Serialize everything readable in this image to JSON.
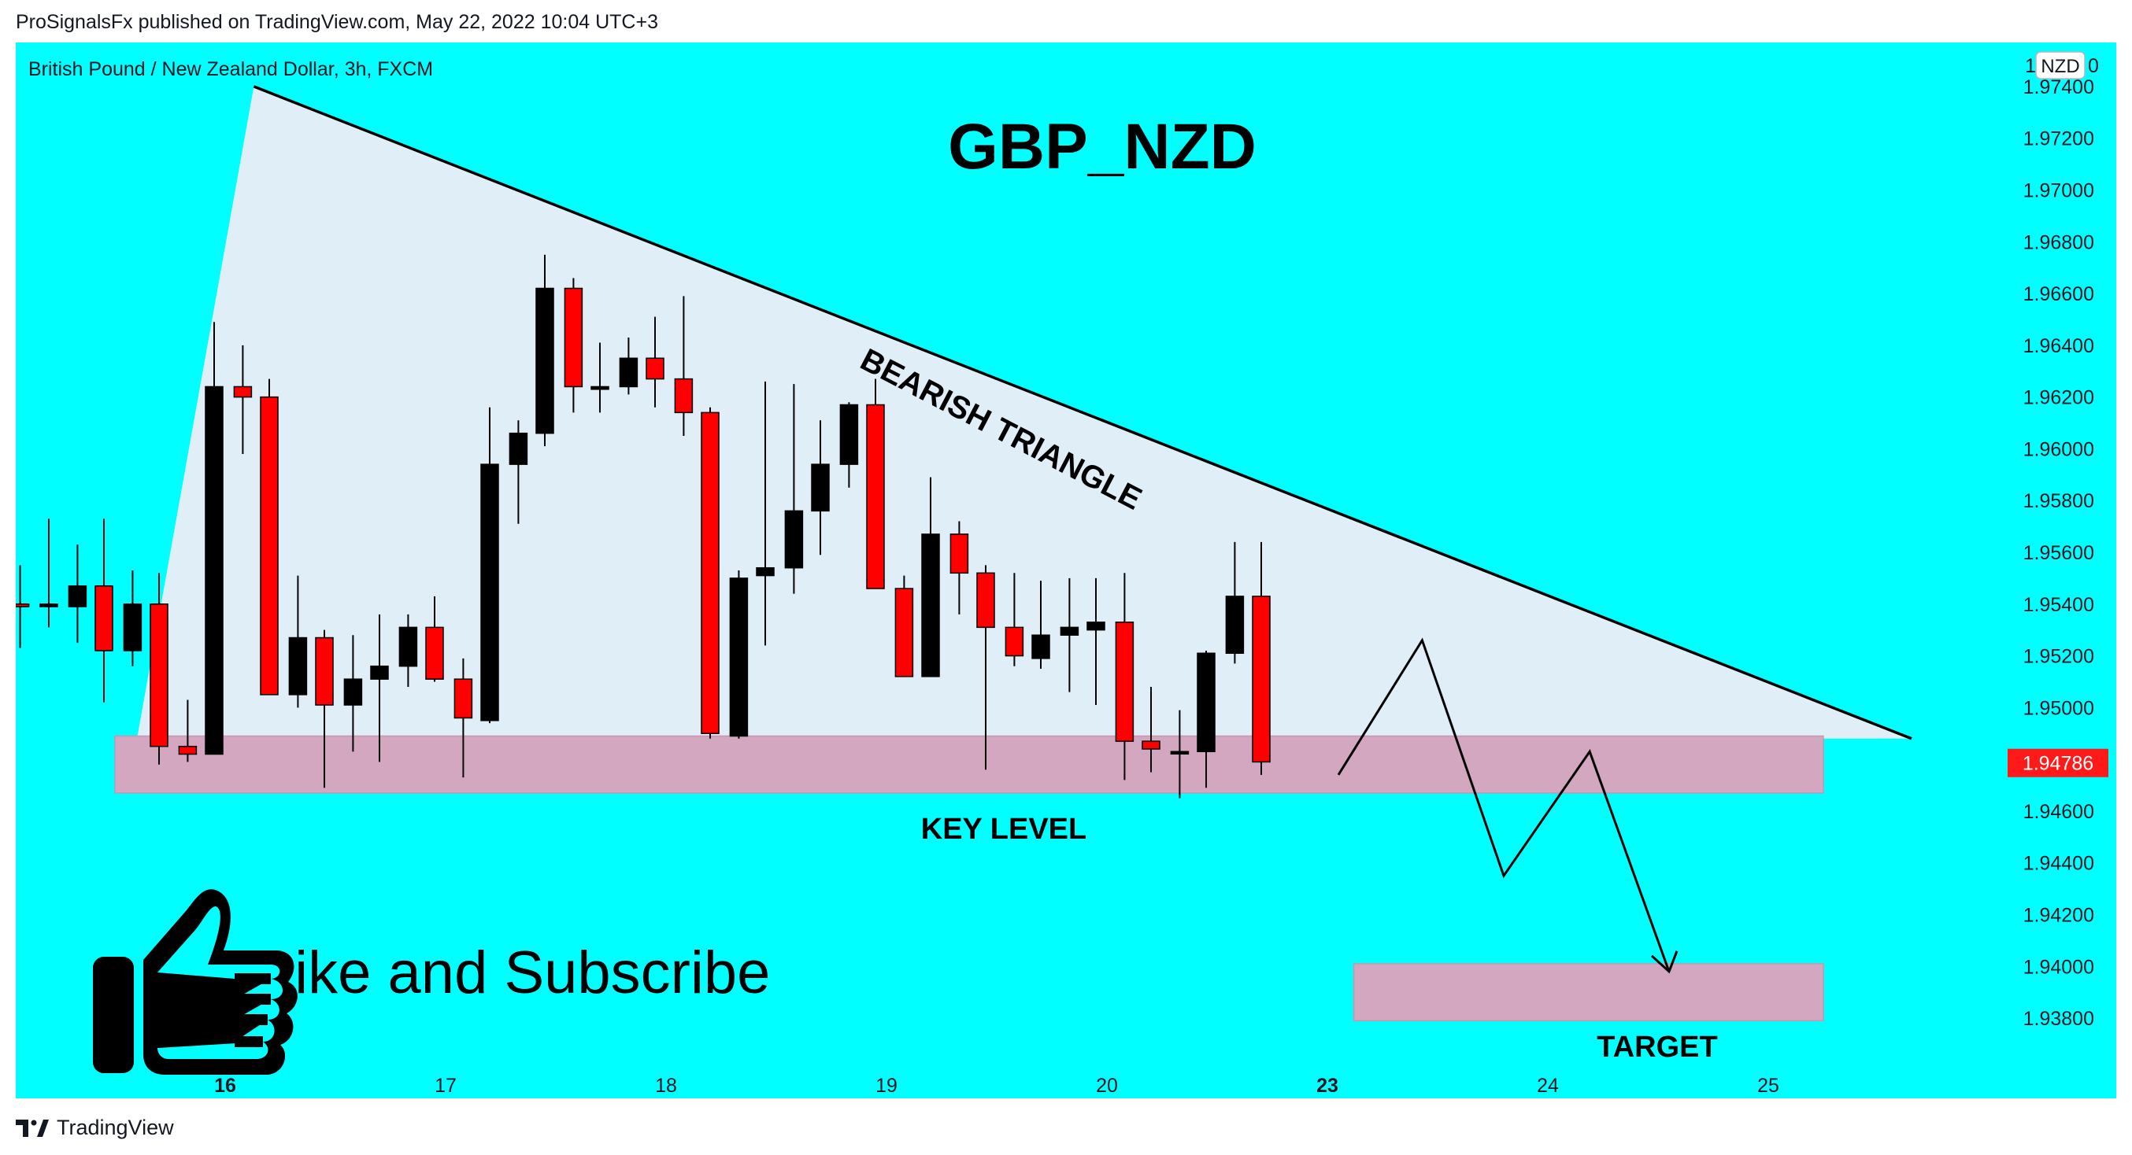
{
  "header": {
    "publisher_line": "ProSignalsFx published on TradingView.com, May 22, 2022 10:04 UTC+3"
  },
  "footer": {
    "brand": "TradingView",
    "logo_icon": "tradingview-logo-icon"
  },
  "colors": {
    "background": "#00ffff",
    "bull_candle": "#000000",
    "bear_candle": "#ff0000",
    "triangle_fill": "#e0eef8",
    "zone_fill": "#d4a7c0",
    "price_tag": "#ff1a1a"
  },
  "chart_data": {
    "type": "candlestick",
    "symbol_line": "British Pound / New Zealand Dollar, 3h, FXCM",
    "currency_badge": "NZD",
    "axis_top_fragment": "1",
    "axis_top_fragment_right": "0",
    "title": "GBP_NZD",
    "annotations": {
      "pattern": "BEARISH TRIANGLE",
      "key_level": "KEY LEVEL",
      "target": "TARGET",
      "cta": "Like and Subscribe",
      "cta_icon": "thumbs-up-icon"
    },
    "last_price": "1.94786",
    "y_ticks": [
      "1.97400",
      "1.97200",
      "1.97000",
      "1.96800",
      "1.96600",
      "1.96400",
      "1.96200",
      "1.96000",
      "1.95800",
      "1.95600",
      "1.95400",
      "1.95200",
      "1.95000",
      "1.94600",
      "1.94400",
      "1.94200",
      "1.94000",
      "1.93800"
    ],
    "x_labels": [
      {
        "label": "16",
        "bold": true,
        "x": 15.95
      },
      {
        "label": "17",
        "bold": false,
        "x": 16.95
      },
      {
        "label": "18",
        "bold": false,
        "x": 17.95
      },
      {
        "label": "19",
        "bold": false,
        "x": 18.95
      },
      {
        "label": "20",
        "bold": false,
        "x": 19.95
      },
      {
        "label": "23",
        "bold": true,
        "x": 20.95
      },
      {
        "label": "24",
        "bold": false,
        "x": 21.95
      },
      {
        "label": "25",
        "bold": false,
        "x": 22.95
      }
    ],
    "candles": [
      {
        "x": 15.02,
        "o": 1.954,
        "h": 1.9555,
        "l": 1.9523,
        "c": 1.9539
      },
      {
        "x": 15.15,
        "o": 1.9539,
        "h": 1.9573,
        "l": 1.9531,
        "c": 1.954
      },
      {
        "x": 15.28,
        "o": 1.9539,
        "h": 1.9563,
        "l": 1.9525,
        "c": 1.9547
      },
      {
        "x": 15.4,
        "o": 1.9547,
        "h": 1.9573,
        "l": 1.9502,
        "c": 1.9522
      },
      {
        "x": 15.53,
        "o": 1.9522,
        "h": 1.9553,
        "l": 1.9516,
        "c": 1.954
      },
      {
        "x": 15.65,
        "o": 1.954,
        "h": 1.9552,
        "l": 1.9478,
        "c": 1.9485
      },
      {
        "x": 15.78,
        "o": 1.9485,
        "h": 1.9503,
        "l": 1.9479,
        "c": 1.9482
      },
      {
        "x": 15.9,
        "o": 1.9482,
        "h": 1.9649,
        "l": 1.9482,
        "c": 1.9624
      },
      {
        "x": 16.03,
        "o": 1.9624,
        "h": 1.964,
        "l": 1.9598,
        "c": 1.962
      },
      {
        "x": 16.15,
        "o": 1.962,
        "h": 1.9627,
        "l": 1.9505,
        "c": 1.9505
      },
      {
        "x": 16.28,
        "o": 1.9505,
        "h": 1.9551,
        "l": 1.95,
        "c": 1.9527
      },
      {
        "x": 16.4,
        "o": 1.9527,
        "h": 1.953,
        "l": 1.9469,
        "c": 1.9501
      },
      {
        "x": 16.53,
        "o": 1.9501,
        "h": 1.9528,
        "l": 1.9483,
        "c": 1.9511
      },
      {
        "x": 16.65,
        "o": 1.9511,
        "h": 1.9536,
        "l": 1.9479,
        "c": 1.9516
      },
      {
        "x": 16.78,
        "o": 1.9516,
        "h": 1.9536,
        "l": 1.9508,
        "c": 1.9531
      },
      {
        "x": 16.9,
        "o": 1.9531,
        "h": 1.9543,
        "l": 1.951,
        "c": 1.9511
      },
      {
        "x": 17.03,
        "o": 1.9511,
        "h": 1.9519,
        "l": 1.9473,
        "c": 1.9496
      },
      {
        "x": 17.15,
        "o": 1.9495,
        "h": 1.9616,
        "l": 1.9494,
        "c": 1.9594
      },
      {
        "x": 17.28,
        "o": 1.9594,
        "h": 1.9611,
        "l": 1.9571,
        "c": 1.9606
      },
      {
        "x": 17.4,
        "o": 1.9606,
        "h": 1.9675,
        "l": 1.9601,
        "c": 1.9662
      },
      {
        "x": 17.53,
        "o": 1.9662,
        "h": 1.9666,
        "l": 1.9614,
        "c": 1.9624
      },
      {
        "x": 17.65,
        "o": 1.9623,
        "h": 1.9641,
        "l": 1.9614,
        "c": 1.9624
      },
      {
        "x": 17.78,
        "o": 1.9624,
        "h": 1.9643,
        "l": 1.9621,
        "c": 1.9635
      },
      {
        "x": 17.9,
        "o": 1.9635,
        "h": 1.9651,
        "l": 1.9616,
        "c": 1.9627
      },
      {
        "x": 18.03,
        "o": 1.9627,
        "h": 1.9659,
        "l": 1.9605,
        "c": 1.9614
      },
      {
        "x": 18.15,
        "o": 1.9614,
        "h": 1.9616,
        "l": 1.9488,
        "c": 1.949
      },
      {
        "x": 18.28,
        "o": 1.9489,
        "h": 1.9553,
        "l": 1.9488,
        "c": 1.955
      },
      {
        "x": 18.4,
        "o": 1.9551,
        "h": 1.9626,
        "l": 1.9524,
        "c": 1.9554
      },
      {
        "x": 18.53,
        "o": 1.9554,
        "h": 1.9625,
        "l": 1.9544,
        "c": 1.9576
      },
      {
        "x": 18.65,
        "o": 1.9576,
        "h": 1.9611,
        "l": 1.9559,
        "c": 1.9594
      },
      {
        "x": 18.78,
        "o": 1.9594,
        "h": 1.9618,
        "l": 1.9585,
        "c": 1.9617
      },
      {
        "x": 18.9,
        "o": 1.9617,
        "h": 1.9627,
        "l": 1.9546,
        "c": 1.9546
      },
      {
        "x": 19.03,
        "o": 1.9546,
        "h": 1.9551,
        "l": 1.9512,
        "c": 1.9512
      },
      {
        "x": 19.15,
        "o": 1.9512,
        "h": 1.9589,
        "l": 1.9512,
        "c": 1.9567
      },
      {
        "x": 19.28,
        "o": 1.9567,
        "h": 1.9572,
        "l": 1.9536,
        "c": 1.9552
      },
      {
        "x": 19.4,
        "o": 1.9552,
        "h": 1.9555,
        "l": 1.9476,
        "c": 1.9531
      },
      {
        "x": 19.53,
        "o": 1.9531,
        "h": 1.9552,
        "l": 1.9516,
        "c": 1.952
      },
      {
        "x": 19.65,
        "o": 1.9519,
        "h": 1.9549,
        "l": 1.9515,
        "c": 1.9528
      },
      {
        "x": 19.78,
        "o": 1.9528,
        "h": 1.955,
        "l": 1.9506,
        "c": 1.9531
      },
      {
        "x": 19.9,
        "o": 1.953,
        "h": 1.955,
        "l": 1.9501,
        "c": 1.9533
      },
      {
        "x": 20.03,
        "o": 1.9533,
        "h": 1.9552,
        "l": 1.9472,
        "c": 1.9487
      },
      {
        "x": 20.15,
        "o": 1.9487,
        "h": 1.9508,
        "l": 1.9475,
        "c": 1.9484
      },
      {
        "x": 20.28,
        "o": 1.9483,
        "h": 1.9499,
        "l": 1.9465,
        "c": 1.9483
      },
      {
        "x": 20.4,
        "o": 1.9483,
        "h": 1.9522,
        "l": 1.9469,
        "c": 1.9521
      },
      {
        "x": 20.53,
        "o": 1.9521,
        "h": 1.9564,
        "l": 1.9517,
        "c": 1.9543
      },
      {
        "x": 20.65,
        "o": 1.9543,
        "h": 1.9564,
        "l": 1.9474,
        "c": 1.9479
      }
    ],
    "triangle": {
      "apex": [
        16.08,
        1.974
      ],
      "upper_end": [
        23.6,
        1.9488
      ],
      "lower_left": [
        15.55,
        1.9488
      ]
    },
    "key_level_zone": {
      "x_from": 15.45,
      "x_to": 23.2,
      "y_from": 1.9467,
      "y_to": 1.9489
    },
    "target_zone": {
      "x_from": 21.07,
      "x_to": 23.2,
      "y_from": 1.9379,
      "y_to": 1.9401
    },
    "projection_path": [
      [
        21.0,
        1.9474
      ],
      [
        21.38,
        1.9526
      ],
      [
        21.75,
        1.9435
      ],
      [
        22.14,
        1.9483
      ],
      [
        22.5,
        1.9398
      ]
    ],
    "ylim": [
      1.9349,
      1.9757
    ],
    "xlim": [
      15.0,
      24.0
    ]
  }
}
